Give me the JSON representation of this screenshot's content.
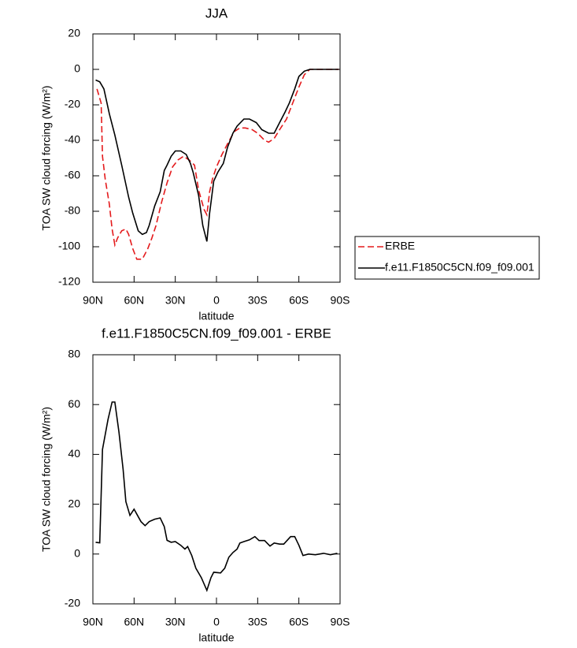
{
  "chart_data": [
    {
      "type": "line",
      "title": "JJA",
      "x_label": "latitude",
      "y_label": "TOA SW cloud forcing (W/m²)",
      "xlim": [
        90,
        -90
      ],
      "xticks": [
        {
          "value": 90,
          "label": "90N"
        },
        {
          "value": 60,
          "label": "60N"
        },
        {
          "value": 30,
          "label": "30N"
        },
        0,
        {
          "value": -30,
          "label": "30S"
        },
        {
          "value": -60,
          "label": "60S"
        },
        {
          "value": -90,
          "label": "90S"
        }
      ],
      "ylim": [
        -120,
        20
      ],
      "yticks": [
        20,
        0,
        -20,
        -40,
        -60,
        -80,
        -100,
        -120
      ],
      "legend": "right",
      "series": [
        {
          "name": "ERBE",
          "color": "#e41a1c",
          "dashed": true,
          "x": [
            87,
            84,
            83,
            81,
            78,
            76,
            74,
            72,
            69,
            66,
            64,
            61,
            58,
            54,
            50,
            47,
            44,
            40,
            36,
            32,
            28,
            24,
            20,
            16,
            13,
            9,
            7,
            5,
            3,
            0,
            -4,
            -8,
            -13,
            -17,
            -21,
            -26,
            -30,
            -35,
            -38,
            -42,
            -46,
            -51,
            -56,
            -60,
            -64,
            -68,
            -75,
            -82,
            -89
          ],
          "values": [
            -11,
            -19,
            -49,
            -62,
            -76,
            -90,
            -99,
            -95,
            -91,
            -90,
            -93,
            -101,
            -107,
            -107,
            -101,
            -95,
            -88,
            -75,
            -64,
            -55,
            -51,
            -49,
            -51,
            -54,
            -68,
            -79,
            -82,
            -69,
            -62,
            -55,
            -48,
            -42,
            -35,
            -33,
            -33,
            -34,
            -36,
            -40,
            -41,
            -39,
            -34,
            -28,
            -18,
            -10,
            -3,
            0,
            0,
            0,
            0
          ]
        },
        {
          "name": "f.e11.F1850C5CN.f09_f09.001",
          "color": "#000000",
          "dashed": false,
          "x": [
            88,
            85,
            82,
            78,
            74,
            69,
            64,
            61,
            57,
            54,
            51,
            49,
            45,
            41,
            38,
            36,
            33,
            30,
            26,
            22,
            19,
            17,
            13,
            10,
            7,
            5,
            2,
            -1,
            -5,
            -8,
            -12,
            -15,
            -20,
            -24,
            -29,
            -33,
            -38,
            -42,
            -46,
            -50,
            -53,
            -57,
            -60,
            -64,
            -68,
            -75,
            -82,
            -89
          ],
          "values": [
            -6,
            -7,
            -11,
            -25,
            -37,
            -54,
            -72,
            -81,
            -91,
            -93,
            -92,
            -88,
            -77,
            -69,
            -57,
            -54,
            -49,
            -46,
            -46,
            -48,
            -53,
            -58,
            -71,
            -88,
            -97,
            -81,
            -63,
            -58,
            -53,
            -44,
            -36,
            -32,
            -28,
            -28,
            -30,
            -34,
            -36,
            -36,
            -30,
            -24,
            -19,
            -11,
            -4,
            -1,
            0,
            0,
            0,
            0
          ]
        }
      ]
    },
    {
      "type": "line",
      "title": "f.e11.F1850C5CN.f09_f09.001 - ERBE",
      "x_label": "latitude",
      "y_label": "TOA SW cloud forcing (W/m²)",
      "xlim": [
        90,
        -90
      ],
      "xticks": [
        {
          "value": 90,
          "label": "90N"
        },
        {
          "value": 60,
          "label": "60N"
        },
        {
          "value": 30,
          "label": "30N"
        },
        0,
        {
          "value": -30,
          "label": "30S"
        },
        {
          "value": -60,
          "label": "60S"
        },
        {
          "value": -90,
          "label": "90S"
        }
      ],
      "ylim": [
        -20,
        80
      ],
      "yticks": [
        80,
        60,
        40,
        20,
        0,
        -20
      ],
      "series": [
        {
          "color": "#000000",
          "dashed": false,
          "x": [
            88,
            85,
            83,
            79,
            76,
            74,
            71,
            68,
            66,
            63,
            60,
            58,
            55,
            52,
            49,
            45,
            41,
            38,
            36,
            33,
            30,
            26,
            23,
            21,
            18,
            15,
            11,
            7,
            4,
            2,
            -3,
            -6,
            -9,
            -12,
            -15,
            -17,
            -20,
            -24,
            -28,
            -31,
            -35,
            -39,
            -42,
            -46,
            -49,
            -54,
            -57,
            -60,
            -63,
            -67,
            -72,
            -78,
            -83,
            -88
          ],
          "values": [
            4.7,
            4.5,
            42,
            54,
            61,
            61,
            49,
            34,
            21,
            15.5,
            18,
            16,
            13,
            11.4,
            13,
            14,
            14.5,
            11,
            5.5,
            4.7,
            5,
            3.5,
            2,
            3,
            -0.6,
            -5.7,
            -9.5,
            -14.6,
            -9.5,
            -7.3,
            -7.6,
            -5.7,
            -1.3,
            0.6,
            2,
            4.4,
            5,
            5.7,
            7,
            5.4,
            5.4,
            3.2,
            4.4,
            4,
            4,
            7,
            7,
            3.5,
            -0.6,
            0,
            -0.3,
            0.3,
            -0.3,
            0.3
          ]
        }
      ]
    }
  ]
}
